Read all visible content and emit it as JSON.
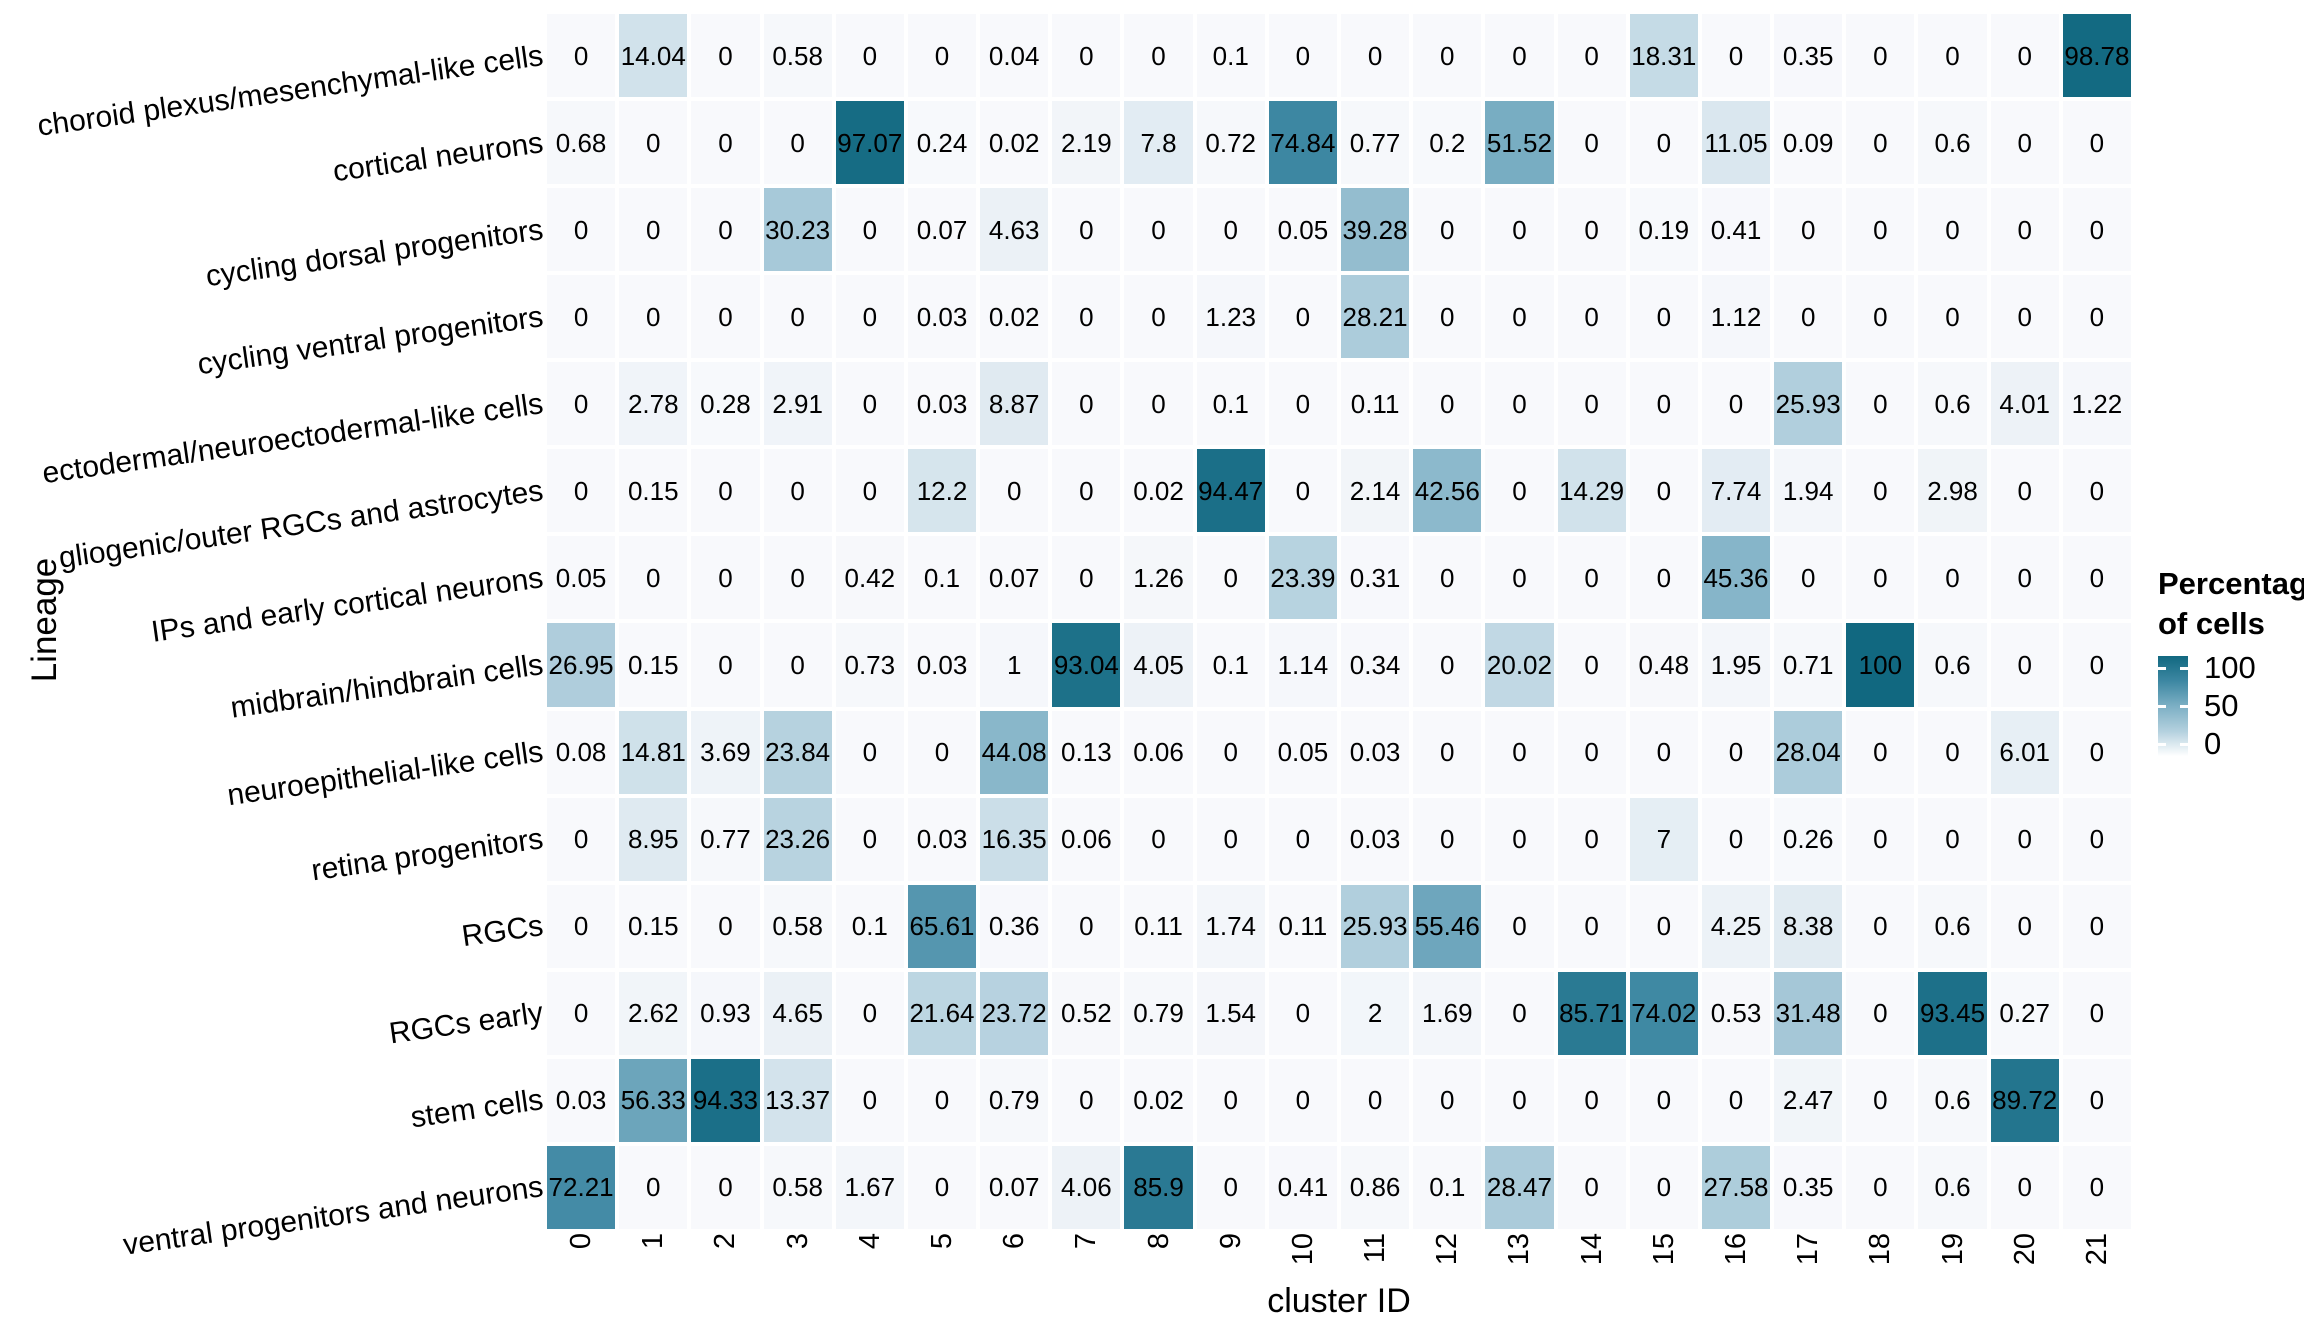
{
  "figure": {
    "background": "#ffffff",
    "text_color": "#000000"
  },
  "chart_data": {
    "type": "heatmap",
    "title": "",
    "xlabel": "cluster ID",
    "ylabel": "Lineage",
    "columns": [
      "0",
      "1",
      "2",
      "3",
      "4",
      "5",
      "6",
      "7",
      "8",
      "9",
      "10",
      "11",
      "12",
      "13",
      "14",
      "15",
      "16",
      "17",
      "18",
      "19",
      "20",
      "21"
    ],
    "rows": [
      "choroid plexus/mesenchymal-like cells",
      "cortical neurons",
      "cycling dorsal progenitors",
      "cycling ventral progenitors",
      "ectodermal/neuroectodermal-like cells",
      "gliogenic/outer RGCs and astrocytes",
      "IPs and early cortical neurons",
      "midbrain/hindbrain cells",
      "neuroepithelial-like cells",
      "retina progenitors",
      "RGCs",
      "RGCs early",
      "stem cells",
      "ventral progenitors and neurons"
    ],
    "values": [
      [
        0,
        14.04,
        0,
        0.58,
        0,
        0,
        0.04,
        0,
        0,
        0.1,
        0,
        0,
        0,
        0,
        0,
        18.31,
        0,
        0.35,
        0,
        0,
        0,
        98.78
      ],
      [
        0.68,
        0,
        0,
        0,
        97.07,
        0.24,
        0.02,
        2.19,
        7.8,
        0.72,
        74.84,
        0.77,
        0.2,
        51.52,
        0,
        0,
        11.05,
        0.09,
        0,
        0.6,
        0,
        0
      ],
      [
        0,
        0,
        0,
        30.23,
        0,
        0.07,
        4.63,
        0,
        0,
        0,
        0.05,
        39.28,
        0,
        0,
        0,
        0.19,
        0.41,
        0,
        0,
        0,
        0,
        0
      ],
      [
        0,
        0,
        0,
        0,
        0,
        0.03,
        0.02,
        0,
        0,
        1.23,
        0,
        28.21,
        0,
        0,
        0,
        0,
        1.12,
        0,
        0,
        0,
        0,
        0
      ],
      [
        0,
        2.78,
        0.28,
        2.91,
        0,
        0.03,
        8.87,
        0,
        0,
        0.1,
        0,
        0.11,
        0,
        0,
        0,
        0,
        0,
        25.93,
        0,
        0.6,
        4.01,
        1.22
      ],
      [
        0,
        0.15,
        0,
        0,
        0,
        12.2,
        0,
        0,
        0.02,
        94.47,
        0,
        2.14,
        42.56,
        0,
        14.29,
        0,
        7.74,
        1.94,
        0,
        2.98,
        0,
        0
      ],
      [
        0.05,
        0,
        0,
        0,
        0.42,
        0.1,
        0.07,
        0,
        1.26,
        0,
        23.39,
        0.31,
        0,
        0,
        0,
        0,
        45.36,
        0,
        0,
        0,
        0,
        0
      ],
      [
        26.95,
        0.15,
        0,
        0,
        0.73,
        0.03,
        1,
        93.04,
        4.05,
        0.1,
        1.14,
        0.34,
        0,
        20.02,
        0,
        0.48,
        1.95,
        0.71,
        100,
        0.6,
        0,
        0
      ],
      [
        0.08,
        14.81,
        3.69,
        23.84,
        0,
        0,
        44.08,
        0.13,
        0.06,
        0,
        0.05,
        0.03,
        0,
        0,
        0,
        0,
        0,
        28.04,
        0,
        0,
        6.01,
        0
      ],
      [
        0,
        8.95,
        0.77,
        23.26,
        0,
        0.03,
        16.35,
        0.06,
        0,
        0,
        0,
        0.03,
        0,
        0,
        0,
        7,
        0,
        0.26,
        0,
        0,
        0,
        0
      ],
      [
        0,
        0.15,
        0,
        0.58,
        0.1,
        65.61,
        0.36,
        0,
        0.11,
        1.74,
        0.11,
        25.93,
        55.46,
        0,
        0,
        0,
        4.25,
        8.38,
        0,
        0.6,
        0,
        0
      ],
      [
        0,
        2.62,
        0.93,
        4.65,
        0,
        21.64,
        23.72,
        0.52,
        0.79,
        1.54,
        0,
        2,
        1.69,
        0,
        85.71,
        74.02,
        0.53,
        31.48,
        0,
        93.45,
        0.27,
        0
      ],
      [
        0.03,
        56.33,
        94.33,
        13.37,
        0,
        0,
        0.79,
        0,
        0.02,
        0,
        0,
        0,
        0,
        0,
        0,
        0,
        0,
        2.47,
        0,
        0.6,
        89.72,
        0
      ],
      [
        72.21,
        0,
        0,
        0.58,
        1.67,
        0,
        0.07,
        4.06,
        85.9,
        0,
        0.41,
        0.86,
        0.1,
        28.47,
        0,
        0,
        27.58,
        0.35,
        0,
        0.6,
        0,
        0
      ]
    ],
    "value_range": [
      0,
      100
    ],
    "grid": "off",
    "legend": {
      "position": "right",
      "title_line1": "Percentage",
      "title_line2": "of cells",
      "ticks": [
        "100",
        "50",
        "0"
      ],
      "tick_values": [
        100,
        50,
        0
      ]
    },
    "palette": {
      "stops": [
        {
          "v": 0,
          "c": "#f8f9fc"
        },
        {
          "v": 25,
          "c": "#b3d0de"
        },
        {
          "v": 50,
          "c": "#7cafc4"
        },
        {
          "v": 75,
          "c": "#3d87a2"
        },
        {
          "v": 100,
          "c": "#116880"
        }
      ],
      "legend_low": "#ffffff",
      "cell_text": "#000000"
    }
  }
}
